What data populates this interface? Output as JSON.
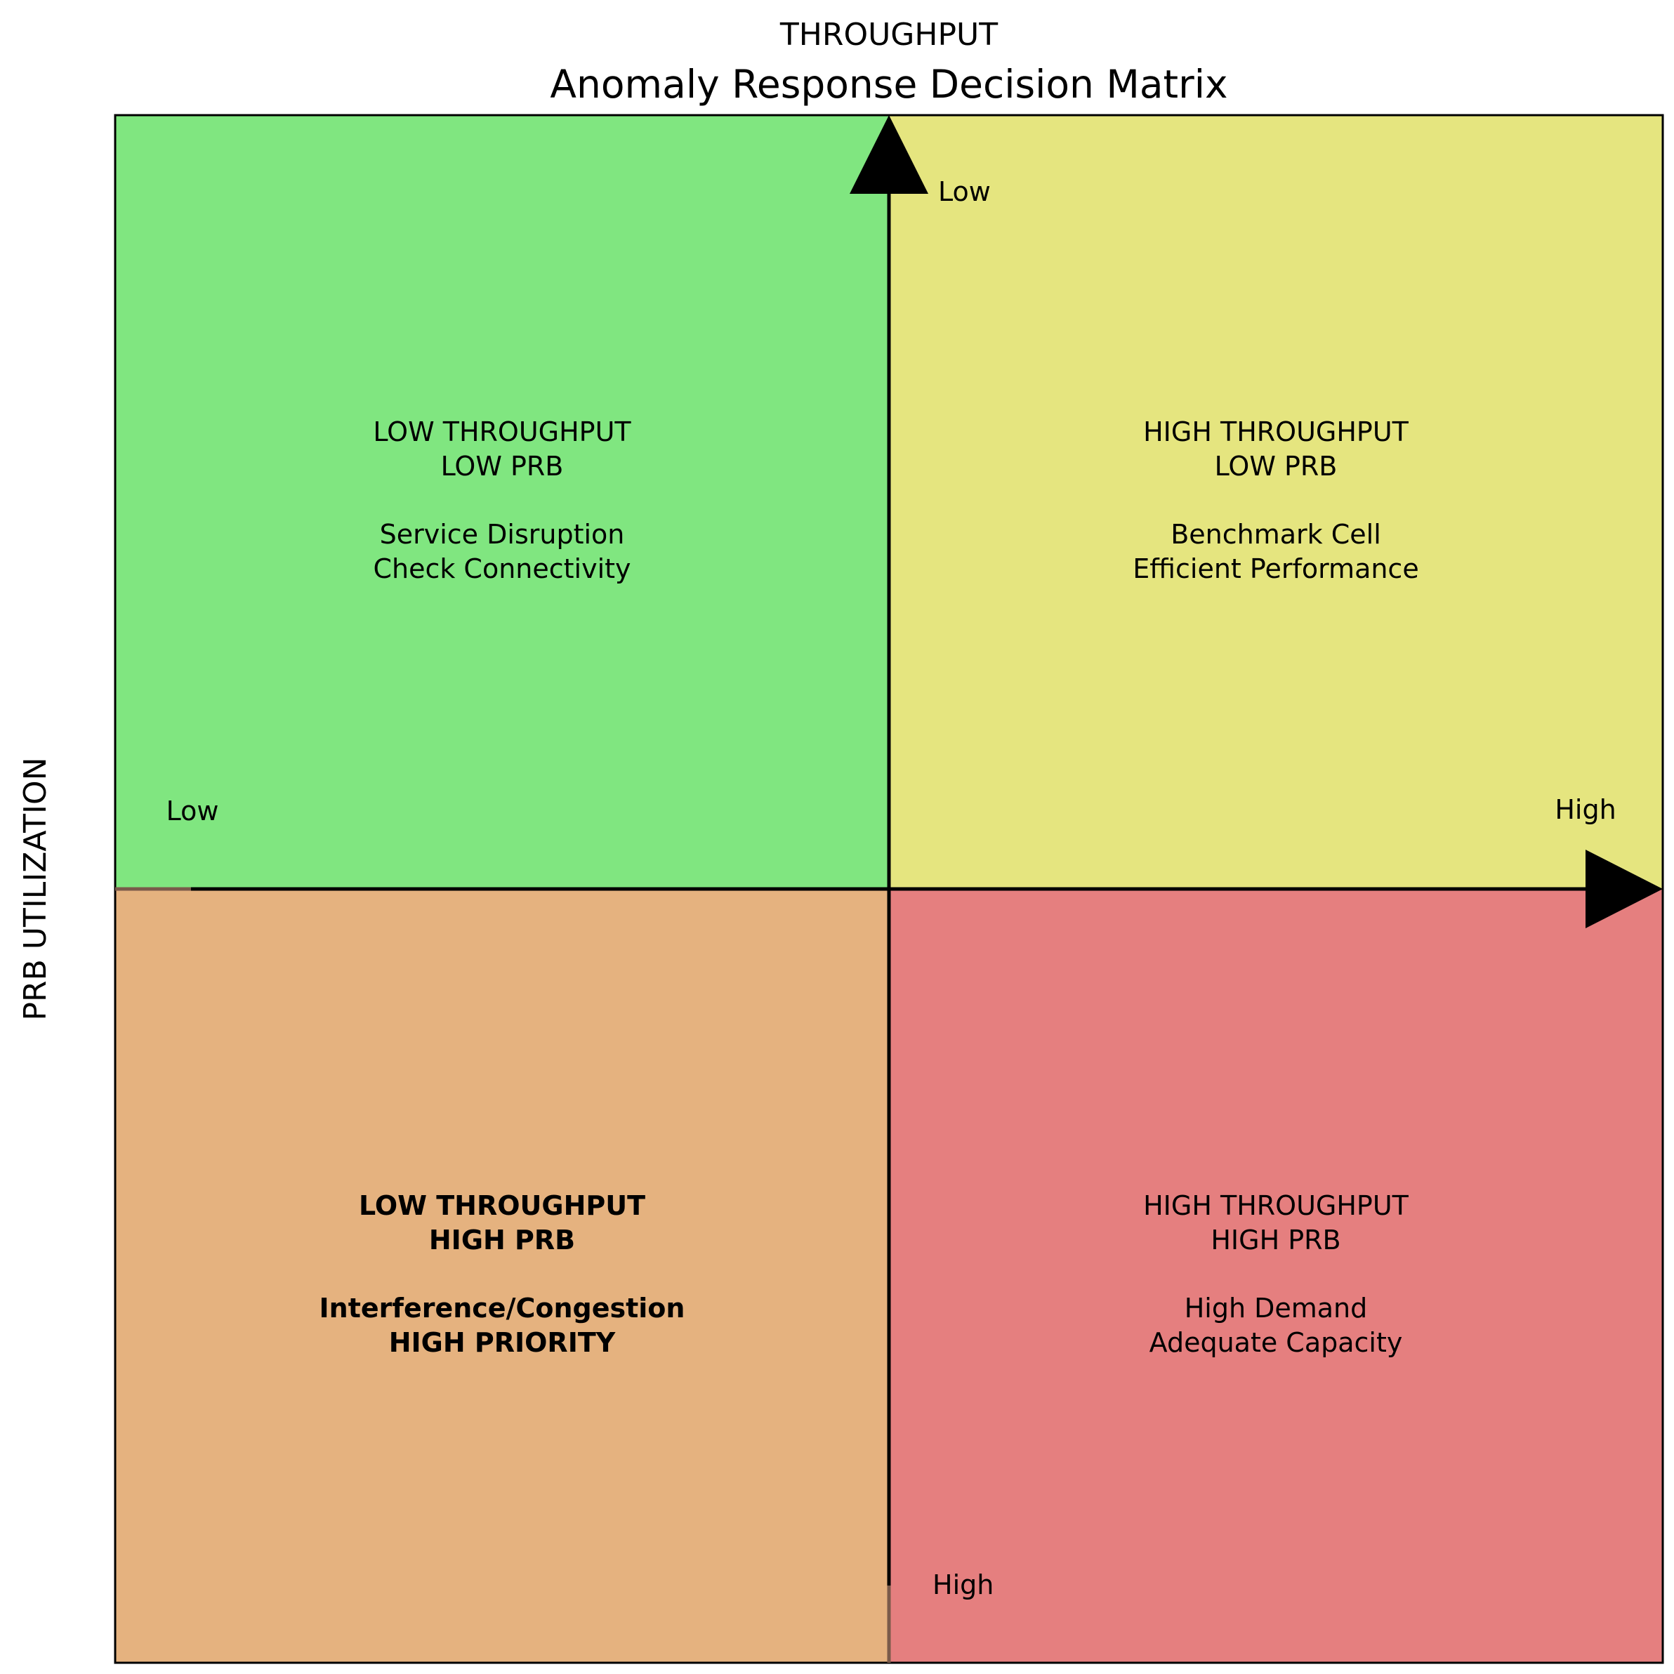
{
  "diagram": {
    "axis_top_label": "THROUGHPUT",
    "title": "Anomaly Response Decision Matrix",
    "axis_left_label": "PRB UTILIZATION",
    "axis_ticks": {
      "vertical_top": "Low",
      "vertical_bottom": "High",
      "horizontal_left": "Low",
      "horizontal_right": "High"
    },
    "quadrants": [
      {
        "id": "top-left",
        "color": "#80e680",
        "bold": false,
        "line1": "LOW THROUGHPUT",
        "line2": "LOW PRB",
        "line3": "Service Disruption",
        "line4": "Check Connectivity"
      },
      {
        "id": "top-right",
        "color": "#e5e57f",
        "bold": false,
        "line1": "HIGH THROUGHPUT",
        "line2": "LOW PRB",
        "line3": "Benchmark Cell",
        "line4": "Efficient Performance"
      },
      {
        "id": "bottom-left",
        "color": "#e5b27f",
        "bold": true,
        "line1": "LOW THROUGHPUT",
        "line2": "HIGH PRB",
        "line3": "Interference/Congestion",
        "line4": "HIGH PRIORITY"
      },
      {
        "id": "bottom-right",
        "color": "#e57f7f",
        "bold": false,
        "line1": "HIGH THROUGHPUT",
        "line2": "HIGH PRB",
        "line3": "High Demand",
        "line4": "Adequate Capacity"
      }
    ]
  }
}
